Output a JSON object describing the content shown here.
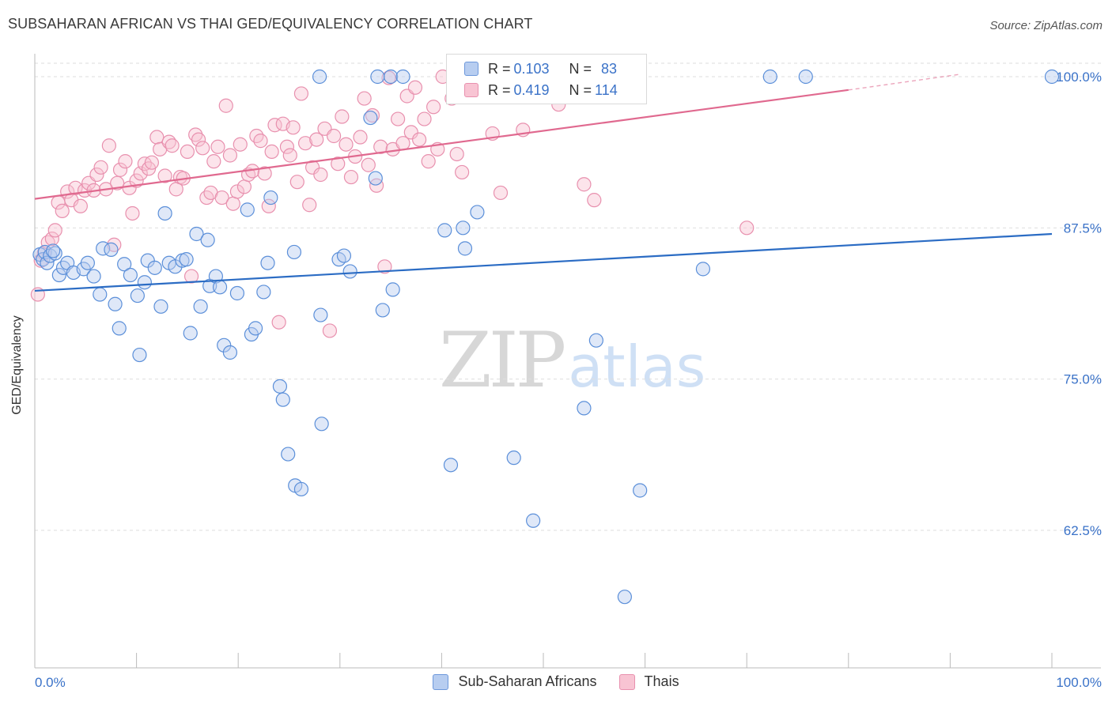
{
  "title": "SUBSAHARAN AFRICAN VS THAI GED/EQUIVALENCY CORRELATION CHART",
  "source": "Source: ZipAtlas.com",
  "watermark": {
    "zip": "ZIP",
    "atlas": "atlas"
  },
  "legend": {
    "rows": [
      {
        "r_label": "R = ",
        "r_value": "0.103",
        "n_label": "N = ",
        "n_value": "83",
        "color": "#6d98db"
      },
      {
        "r_label": "R = ",
        "r_value": "0.419",
        "n_label": "N = ",
        "n_value": "114",
        "color": "#e890ae"
      }
    ]
  },
  "bottom_legend": [
    "Sub-Saharan Africans",
    "Thais"
  ],
  "colors": {
    "blue_fill": "#b7cdf0",
    "blue_stroke": "#5b8fd9",
    "blue_line": "#2b6cc4",
    "pink_fill": "#f8c4d3",
    "pink_stroke": "#e890ae",
    "pink_line": "#e0698f",
    "tick_text": "#3a72c8"
  },
  "chart_data": {
    "type": "scatter",
    "title": "SUBSAHARAN AFRICAN VS THAI GED/EQUIVALENCY CORRELATION CHART",
    "xlabel": "",
    "ylabel": "GED/Equivalency",
    "xlim": [
      0,
      100
    ],
    "ylim": [
      50,
      101.5
    ],
    "x_tick_labels": [
      "0.0%",
      "100.0%"
    ],
    "y_ticks": [
      62.5,
      75.0,
      87.5,
      100.0
    ],
    "y_tick_labels": [
      "62.5%",
      "75.0%",
      "87.5%",
      "100.0%"
    ],
    "grid": true,
    "legend_position": "top-center",
    "series": [
      {
        "name": "Sub-Saharan Africans",
        "r": 0.103,
        "n": 83,
        "trend": {
          "x": [
            0,
            100
          ],
          "y": [
            82.3,
            87.0
          ]
        },
        "points": [
          [
            0.5,
            85.3
          ],
          [
            0.8,
            84.9
          ],
          [
            1.0,
            85.5
          ],
          [
            1.2,
            84.6
          ],
          [
            1.5,
            85.2
          ],
          [
            2.0,
            85.4
          ],
          [
            2.4,
            83.6
          ],
          [
            2.8,
            84.2
          ],
          [
            3.2,
            84.6
          ],
          [
            3.8,
            83.8
          ],
          [
            4.8,
            84.1
          ],
          [
            5.2,
            84.6
          ],
          [
            5.8,
            83.5
          ],
          [
            6.4,
            82.0
          ],
          [
            6.7,
            85.8
          ],
          [
            7.5,
            85.7
          ],
          [
            7.9,
            81.2
          ],
          [
            8.3,
            79.2
          ],
          [
            8.8,
            84.5
          ],
          [
            9.4,
            83.6
          ],
          [
            10.1,
            81.9
          ],
          [
            10.3,
            77.0
          ],
          [
            10.8,
            83.0
          ],
          [
            11.1,
            84.8
          ],
          [
            11.8,
            84.2
          ],
          [
            12.4,
            81.0
          ],
          [
            12.8,
            88.7
          ],
          [
            13.2,
            84.6
          ],
          [
            13.8,
            84.3
          ],
          [
            14.5,
            84.8
          ],
          [
            14.9,
            84.9
          ],
          [
            15.3,
            78.8
          ],
          [
            15.9,
            87.0
          ],
          [
            16.3,
            81.0
          ],
          [
            17.0,
            86.5
          ],
          [
            17.2,
            82.7
          ],
          [
            17.8,
            83.5
          ],
          [
            18.2,
            82.6
          ],
          [
            18.6,
            77.8
          ],
          [
            19.2,
            77.2
          ],
          [
            19.9,
            82.1
          ],
          [
            20.9,
            89.0
          ],
          [
            21.3,
            78.7
          ],
          [
            21.7,
            79.2
          ],
          [
            22.5,
            82.2
          ],
          [
            22.9,
            84.6
          ],
          [
            23.2,
            90.0
          ],
          [
            24.1,
            74.4
          ],
          [
            24.4,
            73.3
          ],
          [
            24.9,
            68.8
          ],
          [
            25.5,
            85.5
          ],
          [
            25.6,
            66.2
          ],
          [
            26.2,
            65.9
          ],
          [
            28.0,
            100.0
          ],
          [
            28.1,
            80.3
          ],
          [
            28.2,
            71.3
          ],
          [
            29.9,
            84.9
          ],
          [
            30.4,
            85.2
          ],
          [
            31.0,
            83.9
          ],
          [
            33.0,
            96.6
          ],
          [
            33.5,
            91.6
          ],
          [
            33.7,
            100.0
          ],
          [
            34.2,
            80.7
          ],
          [
            35.0,
            100.0
          ],
          [
            35.2,
            82.4
          ],
          [
            36.2,
            100.0
          ],
          [
            40.3,
            87.3
          ],
          [
            40.9,
            67.9
          ],
          [
            42.1,
            87.5
          ],
          [
            42.3,
            85.8
          ],
          [
            43.5,
            88.8
          ],
          [
            47.1,
            68.5
          ],
          [
            49.0,
            63.3
          ],
          [
            52.3,
            100.0
          ],
          [
            54.0,
            72.6
          ],
          [
            55.2,
            78.2
          ],
          [
            58.0,
            57.0
          ],
          [
            59.5,
            65.8
          ],
          [
            65.7,
            84.1
          ],
          [
            72.3,
            100.0
          ],
          [
            75.8,
            100.0
          ],
          [
            100.0,
            100.0
          ],
          [
            1.8,
            85.6
          ]
        ]
      },
      {
        "name": "Thais",
        "r": 0.419,
        "n": 114,
        "trend": {
          "x": [
            0,
            80
          ],
          "y": [
            89.9,
            98.9
          ]
        },
        "trend_dashed": {
          "x": [
            80,
            91
          ],
          "y": [
            98.9,
            100.2
          ]
        },
        "points": [
          [
            0.3,
            82.0
          ],
          [
            0.6,
            84.8
          ],
          [
            0.9,
            85.4
          ],
          [
            1.3,
            86.3
          ],
          [
            1.7,
            86.6
          ],
          [
            2.0,
            87.3
          ],
          [
            2.3,
            89.6
          ],
          [
            2.7,
            88.9
          ],
          [
            3.2,
            90.5
          ],
          [
            3.6,
            89.8
          ],
          [
            4.0,
            90.8
          ],
          [
            4.5,
            89.3
          ],
          [
            4.9,
            90.6
          ],
          [
            5.3,
            91.2
          ],
          [
            5.8,
            90.6
          ],
          [
            6.1,
            91.9
          ],
          [
            6.5,
            92.5
          ],
          [
            7.0,
            90.7
          ],
          [
            7.3,
            94.3
          ],
          [
            7.8,
            86.1
          ],
          [
            8.1,
            91.2
          ],
          [
            8.4,
            92.3
          ],
          [
            8.9,
            93.0
          ],
          [
            9.3,
            90.8
          ],
          [
            9.6,
            88.7
          ],
          [
            10.0,
            91.4
          ],
          [
            10.4,
            92.0
          ],
          [
            10.8,
            92.8
          ],
          [
            11.2,
            92.4
          ],
          [
            11.5,
            92.9
          ],
          [
            12.0,
            95.0
          ],
          [
            12.3,
            94.0
          ],
          [
            12.8,
            91.8
          ],
          [
            13.2,
            94.6
          ],
          [
            13.5,
            94.3
          ],
          [
            13.9,
            90.7
          ],
          [
            14.3,
            91.7
          ],
          [
            14.6,
            91.6
          ],
          [
            15.0,
            93.8
          ],
          [
            15.4,
            83.5
          ],
          [
            15.8,
            95.2
          ],
          [
            16.1,
            94.8
          ],
          [
            16.5,
            94.1
          ],
          [
            16.9,
            90.0
          ],
          [
            17.3,
            90.4
          ],
          [
            17.6,
            93.0
          ],
          [
            18.0,
            94.2
          ],
          [
            18.4,
            90.0
          ],
          [
            18.8,
            97.6
          ],
          [
            19.2,
            93.5
          ],
          [
            19.5,
            89.5
          ],
          [
            19.9,
            90.5
          ],
          [
            20.2,
            94.4
          ],
          [
            20.6,
            90.9
          ],
          [
            21.0,
            91.9
          ],
          [
            21.4,
            92.2
          ],
          [
            21.8,
            95.1
          ],
          [
            22.2,
            94.7
          ],
          [
            22.6,
            92.0
          ],
          [
            23.0,
            89.3
          ],
          [
            23.3,
            93.8
          ],
          [
            23.6,
            96.0
          ],
          [
            24.0,
            79.7
          ],
          [
            24.4,
            96.1
          ],
          [
            24.8,
            94.2
          ],
          [
            25.1,
            93.5
          ],
          [
            25.4,
            95.8
          ],
          [
            25.8,
            91.3
          ],
          [
            26.2,
            98.6
          ],
          [
            26.6,
            94.5
          ],
          [
            27.0,
            89.4
          ],
          [
            27.3,
            92.5
          ],
          [
            27.7,
            94.8
          ],
          [
            28.1,
            91.9
          ],
          [
            28.5,
            95.7
          ],
          [
            29.0,
            79.0
          ],
          [
            29.4,
            95.1
          ],
          [
            29.8,
            92.8
          ],
          [
            30.2,
            96.7
          ],
          [
            30.6,
            94.4
          ],
          [
            31.1,
            91.7
          ],
          [
            31.5,
            93.4
          ],
          [
            32.0,
            95.0
          ],
          [
            32.4,
            98.2
          ],
          [
            32.8,
            92.7
          ],
          [
            33.2,
            96.8
          ],
          [
            33.6,
            91.0
          ],
          [
            34.0,
            94.2
          ],
          [
            34.4,
            84.3
          ],
          [
            34.8,
            99.9
          ],
          [
            35.2,
            94.0
          ],
          [
            35.7,
            96.5
          ],
          [
            36.2,
            94.5
          ],
          [
            36.6,
            98.4
          ],
          [
            37.0,
            95.4
          ],
          [
            37.4,
            99.1
          ],
          [
            37.8,
            94.8
          ],
          [
            38.3,
            96.5
          ],
          [
            38.7,
            93.0
          ],
          [
            39.2,
            97.5
          ],
          [
            39.6,
            94.0
          ],
          [
            40.1,
            100.0
          ],
          [
            41.0,
            98.2
          ],
          [
            41.5,
            93.6
          ],
          [
            42.0,
            92.1
          ],
          [
            43.5,
            100.0
          ],
          [
            45.0,
            95.3
          ],
          [
            45.8,
            90.4
          ],
          [
            47.5,
            98.5
          ],
          [
            48.0,
            95.6
          ],
          [
            51.5,
            97.7
          ],
          [
            54.0,
            91.1
          ],
          [
            55.0,
            89.8
          ],
          [
            70.0,
            87.5
          ]
        ]
      }
    ]
  }
}
